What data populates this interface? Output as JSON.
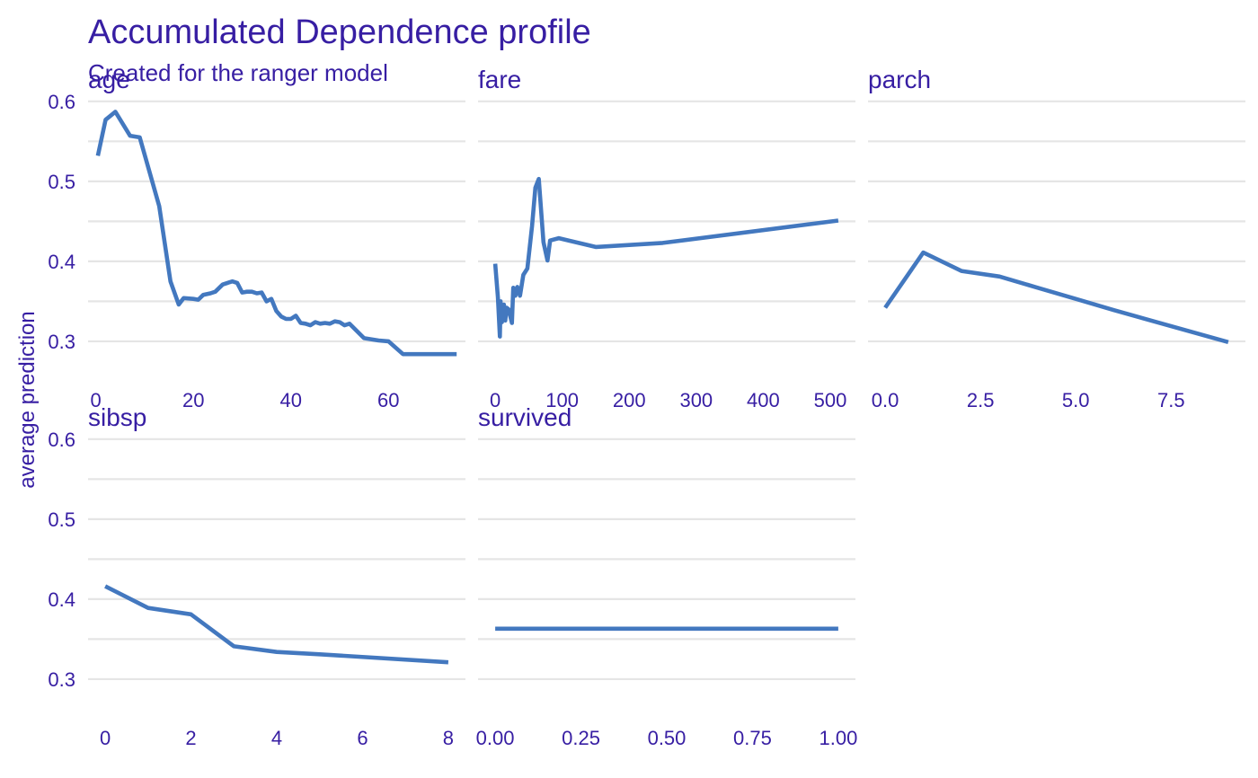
{
  "colors": {
    "text": "#371ea3",
    "line": "#4378bf",
    "grid": "#e5e5e5"
  },
  "chart_data": {
    "type": "line",
    "title": "Accumulated Dependence profile",
    "subtitle": "Created for the ranger model",
    "ylabel": "average prediction",
    "ylim": [
      0.255,
      0.62
    ],
    "y_ticks": [
      0.3,
      0.4,
      0.5,
      0.6
    ],
    "y_tick_labels": [
      "0.3",
      "0.4",
      "0.5",
      "0.6"
    ],
    "legend": "none",
    "panels": [
      {
        "name": "age",
        "xlim": [
          -1.6,
          75.8
        ],
        "x_ticks": [
          0,
          20,
          40,
          60
        ],
        "x_tick_labels": [
          "0",
          "20",
          "40",
          "60"
        ],
        "x": [
          0.4,
          2,
          4,
          7,
          9,
          13,
          15.3,
          17,
          18,
          20,
          21,
          22,
          23.5,
          24.5,
          26,
          27,
          28,
          29,
          30,
          31,
          32,
          33,
          34,
          35,
          36,
          37,
          38,
          39,
          40,
          41,
          42,
          43,
          44,
          45,
          46,
          47,
          48,
          49,
          50,
          51,
          52,
          55,
          58,
          60,
          63,
          65,
          70,
          74
        ],
        "y": [
          0.532,
          0.577,
          0.587,
          0.557,
          0.555,
          0.469,
          0.375,
          0.346,
          0.354,
          0.353,
          0.352,
          0.358,
          0.36,
          0.362,
          0.371,
          0.373,
          0.375,
          0.373,
          0.361,
          0.362,
          0.362,
          0.36,
          0.361,
          0.35,
          0.353,
          0.338,
          0.331,
          0.328,
          0.328,
          0.332,
          0.323,
          0.322,
          0.32,
          0.324,
          0.322,
          0.323,
          0.322,
          0.325,
          0.324,
          0.32,
          0.322,
          0.304,
          0.301,
          0.3,
          0.284,
          0.284,
          0.284,
          0.284
        ]
      },
      {
        "name": "fare",
        "xlim": [
          -25.6,
          537.6
        ],
        "x_ticks": [
          0,
          100,
          200,
          300,
          400,
          500
        ],
        "x_tick_labels": [
          "0",
          "100",
          "200",
          "300",
          "400",
          "500"
        ],
        "x": [
          0,
          4,
          7,
          8,
          10,
          13,
          15,
          17,
          20,
          25,
          27,
          30,
          33,
          37,
          42,
          48,
          55,
          60,
          65,
          72,
          78,
          82,
          95,
          150,
          250,
          512
        ],
        "y": [
          0.397,
          0.355,
          0.306,
          0.35,
          0.324,
          0.346,
          0.326,
          0.342,
          0.34,
          0.323,
          0.367,
          0.357,
          0.368,
          0.357,
          0.383,
          0.391,
          0.444,
          0.492,
          0.503,
          0.424,
          0.401,
          0.426,
          0.429,
          0.418,
          0.423,
          0.451
        ]
      },
      {
        "name": "parch",
        "xlim": [
          -0.45,
          9.45
        ],
        "x_ticks": [
          0,
          2.5,
          5,
          7.5
        ],
        "x_tick_labels": [
          "0.0",
          "2.5",
          "5.0",
          "7.5"
        ],
        "x": [
          0,
          1,
          2,
          3,
          4,
          5,
          6,
          9
        ],
        "y": [
          0.342,
          0.411,
          0.388,
          0.381,
          0.367,
          0.353,
          0.339,
          0.299
        ]
      },
      {
        "name": "sibsp",
        "xlim": [
          -0.4,
          8.4
        ],
        "x_ticks": [
          0,
          2,
          4,
          6,
          8
        ],
        "x_tick_labels": [
          "0",
          "2",
          "4",
          "6",
          "8"
        ],
        "x": [
          0,
          1,
          2,
          3,
          4,
          5,
          8
        ],
        "y": [
          0.416,
          0.389,
          0.381,
          0.341,
          0.334,
          0.331,
          0.321
        ]
      },
      {
        "name": "survived",
        "xlim": [
          -0.05,
          1.05
        ],
        "x_ticks": [
          0,
          0.25,
          0.5,
          0.75,
          1
        ],
        "x_tick_labels": [
          "0.00",
          "0.25",
          "0.50",
          "0.75",
          "1.00"
        ],
        "x": [
          0,
          1
        ],
        "y": [
          0.363,
          0.363
        ]
      }
    ]
  }
}
